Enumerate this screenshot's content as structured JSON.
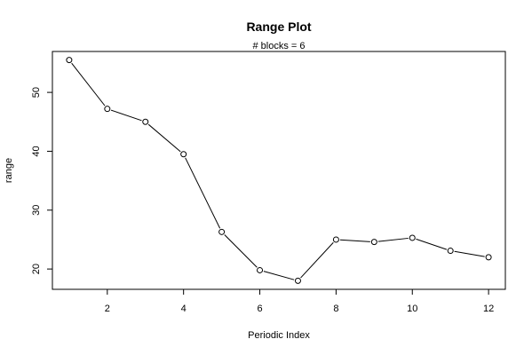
{
  "chart_data": {
    "type": "line",
    "title": "Range Plot",
    "subtitle": "# blocks =  6",
    "xlabel": "Periodic Index",
    "ylabel": "range",
    "x": [
      1,
      2,
      3,
      4,
      5,
      6,
      7,
      8,
      9,
      10,
      11,
      12
    ],
    "series": [
      {
        "values": [
          55.5,
          47.2,
          45.0,
          39.5,
          26.3,
          19.8,
          18.0,
          25.0,
          24.6,
          25.3,
          23.1,
          22.0
        ]
      }
    ],
    "xticks": [
      2,
      4,
      6,
      8,
      10,
      12
    ],
    "yticks": [
      20,
      30,
      40,
      50
    ],
    "xlim": [
      0.56,
      12.44
    ],
    "ylim": [
      16.55,
      56.95
    ],
    "marker": "open-circle",
    "grid": false,
    "legend": "none"
  }
}
